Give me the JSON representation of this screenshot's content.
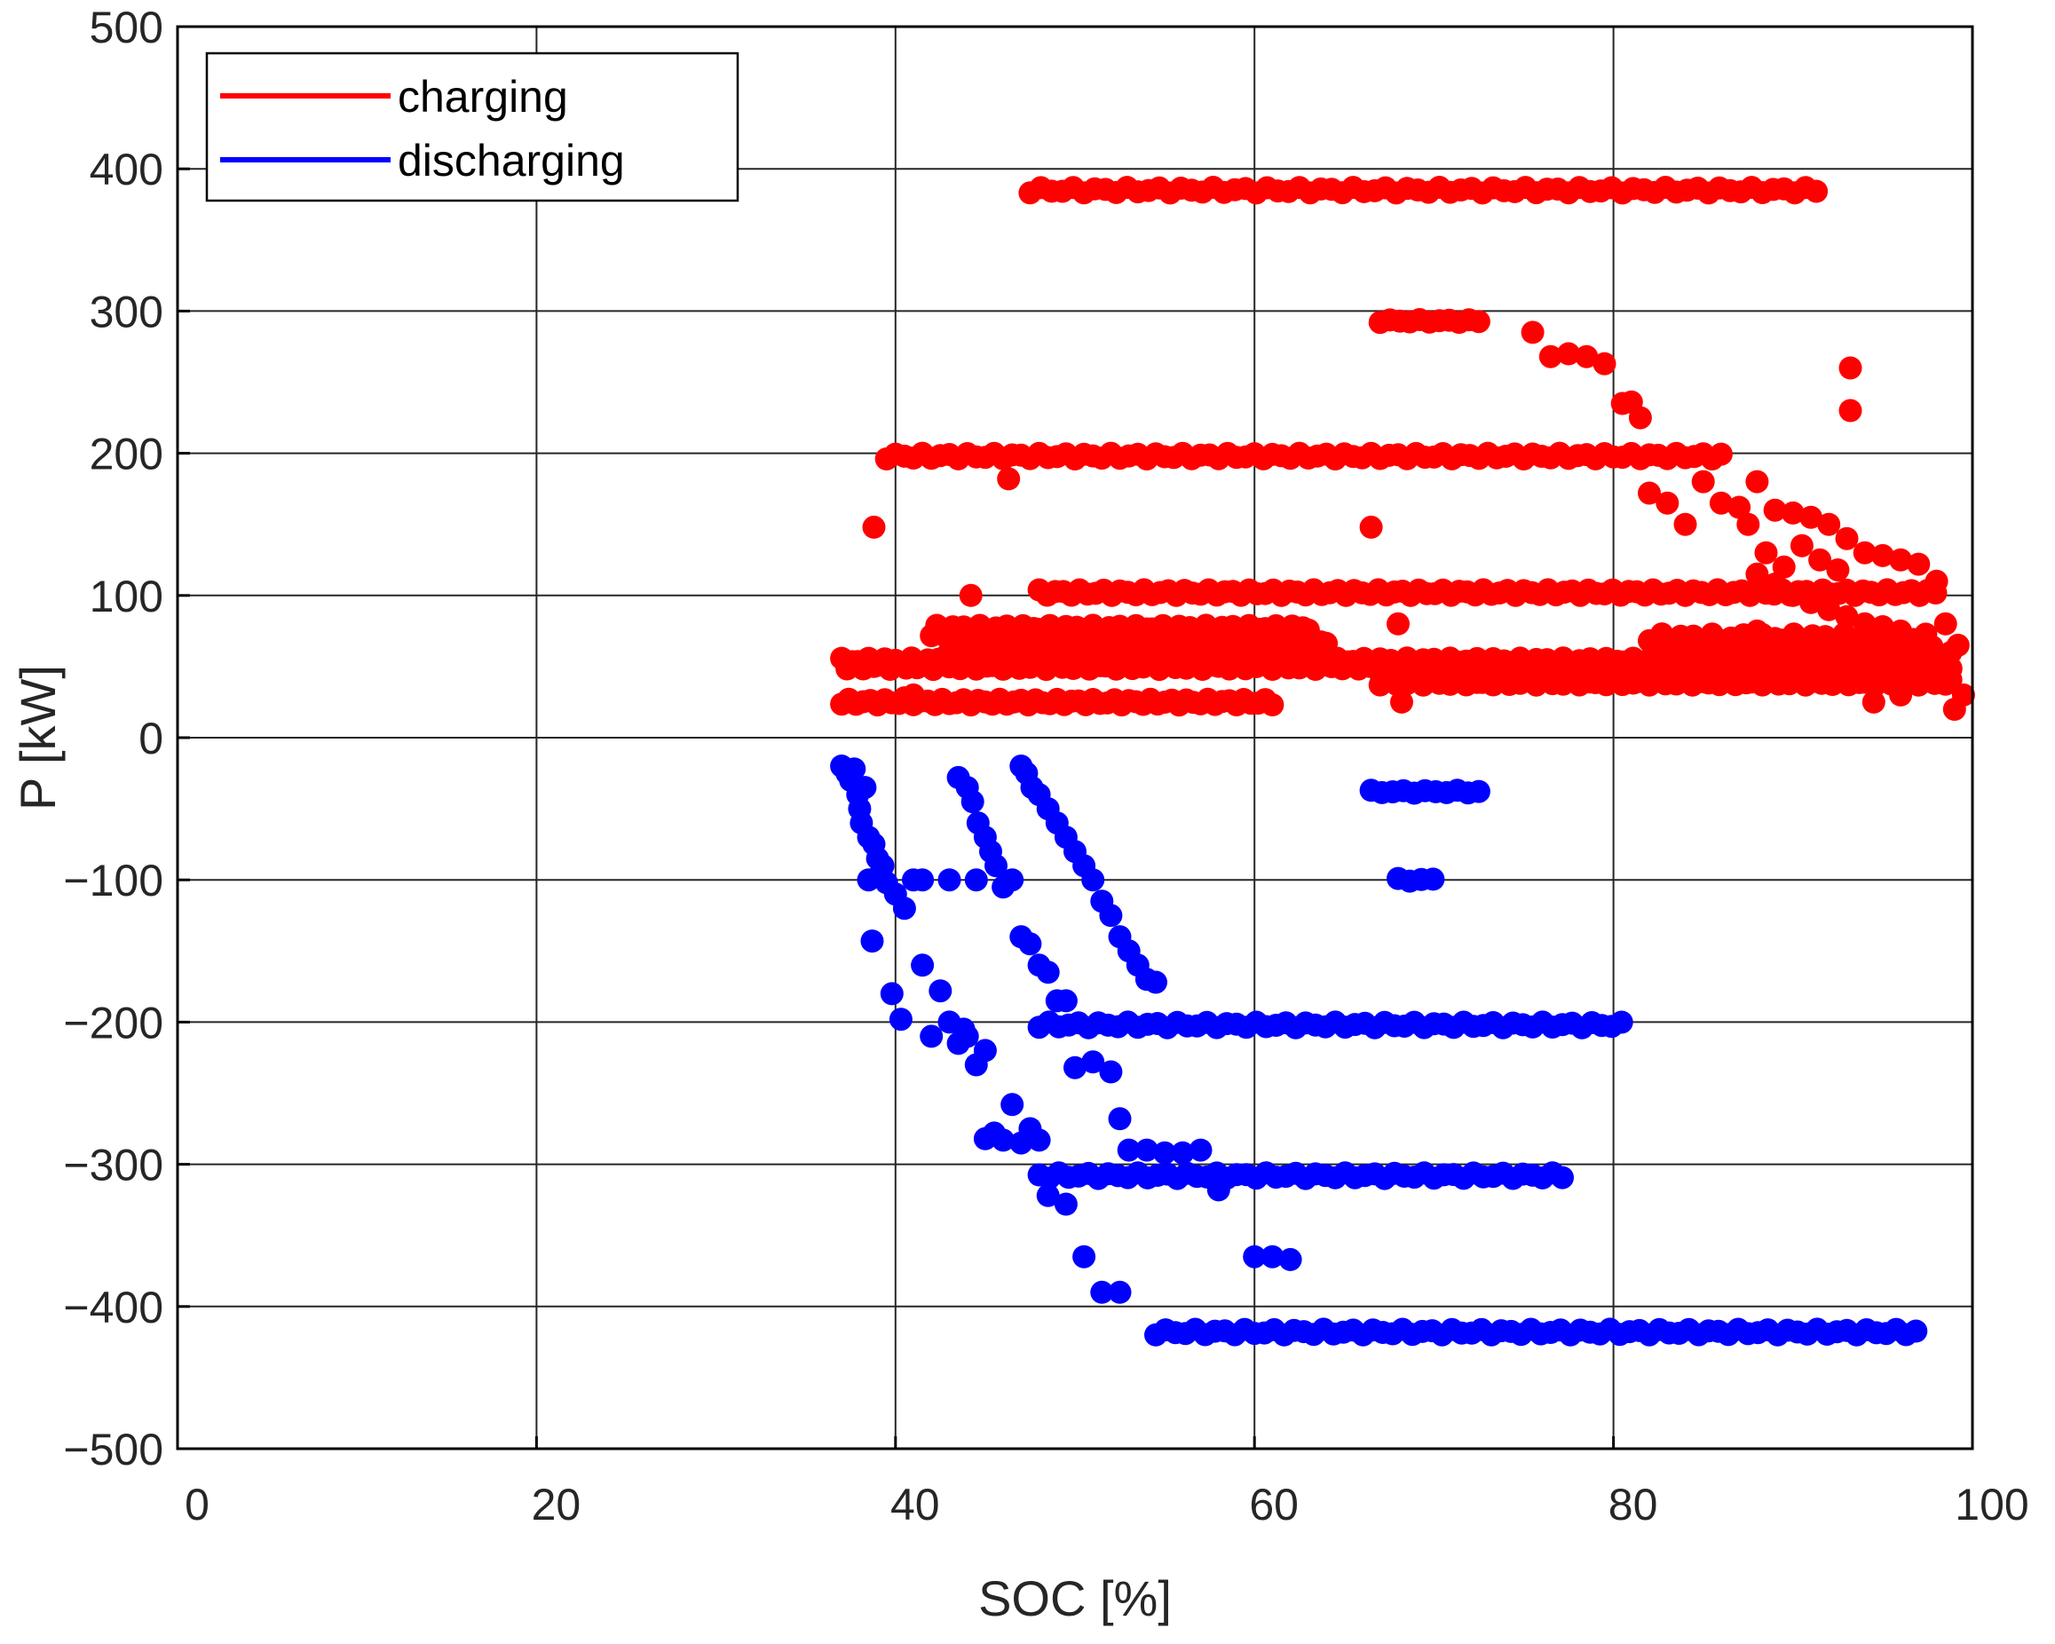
{
  "chart_data": {
    "type": "scatter",
    "title": "",
    "xlabel": "SOC [%]",
    "ylabel": "P [kW]",
    "xlim": [
      0,
      100
    ],
    "ylim": [
      -500,
      500
    ],
    "x_ticks": [
      0,
      20,
      40,
      60,
      80,
      100
    ],
    "y_ticks": [
      500,
      400,
      300,
      200,
      100,
      0,
      -100,
      -200,
      -300,
      -400,
      -500
    ],
    "x_tick_labels": [
      "0",
      "20",
      "40",
      "60",
      "80",
      "100"
    ],
    "y_tick_labels": [
      "500",
      "400",
      "300",
      "200",
      "100",
      "0",
      "−100",
      "−200",
      "−300",
      "−400",
      "−500"
    ],
    "grid": true,
    "legend_position": "top-left",
    "series": [
      {
        "name": "charging",
        "color": "#ff0000",
        "bands": [
          {
            "x_start": 47.5,
            "x_end": 91.5,
            "y": 385,
            "step": 0.6,
            "jitter": 2
          },
          {
            "x_start": 67,
            "x_end": 73,
            "y": 293,
            "step": 0.55,
            "jitter": 1
          },
          {
            "x_start": 39.5,
            "x_end": 86,
            "y": 198,
            "step": 0.5,
            "jitter": 2
          },
          {
            "x_start": 48,
            "x_end": 98,
            "y": 102,
            "step": 0.45,
            "jitter": 2
          },
          {
            "x_start": 42,
            "x_end": 63,
            "y": 75,
            "step": 0.3,
            "jitter": 4
          },
          {
            "x_start": 43,
            "x_end": 64,
            "y": 65,
            "step": 0.3,
            "jitter": 5
          },
          {
            "x_start": 44,
            "x_end": 64,
            "y": 57,
            "step": 0.3,
            "jitter": 5
          },
          {
            "x_start": 37,
            "x_end": 99,
            "y": 52,
            "step": 0.3,
            "jitter": 4
          },
          {
            "x_start": 67,
            "x_end": 99,
            "y": 45,
            "step": 0.3,
            "jitter": 4
          },
          {
            "x_start": 67,
            "x_end": 99,
            "y": 40,
            "step": 0.3,
            "jitter": 3
          },
          {
            "x_start": 82,
            "x_end": 98,
            "y": 67,
            "step": 0.35,
            "jitter": 6
          },
          {
            "x_start": 37,
            "x_end": 61,
            "y": 25,
            "step": 0.4,
            "jitter": 2
          }
        ],
        "points": [
          {
            "x": 38.8,
            "y": 148
          },
          {
            "x": 44.2,
            "y": 100
          },
          {
            "x": 46.3,
            "y": 182
          },
          {
            "x": 66.5,
            "y": 148
          },
          {
            "x": 68,
            "y": 80
          },
          {
            "x": 68.2,
            "y": 25
          },
          {
            "x": 75.5,
            "y": 285
          },
          {
            "x": 76.5,
            "y": 268
          },
          {
            "x": 77.5,
            "y": 270
          },
          {
            "x": 78.5,
            "y": 268
          },
          {
            "x": 79.5,
            "y": 263
          },
          {
            "x": 80.5,
            "y": 235
          },
          {
            "x": 81,
            "y": 236
          },
          {
            "x": 81.5,
            "y": 225
          },
          {
            "x": 93.2,
            "y": 260
          },
          {
            "x": 93.2,
            "y": 230
          },
          {
            "x": 82,
            "y": 172
          },
          {
            "x": 83,
            "y": 165
          },
          {
            "x": 84,
            "y": 150
          },
          {
            "x": 85,
            "y": 180
          },
          {
            "x": 86,
            "y": 165
          },
          {
            "x": 87,
            "y": 162
          },
          {
            "x": 88,
            "y": 180
          },
          {
            "x": 89,
            "y": 160
          },
          {
            "x": 90,
            "y": 158
          },
          {
            "x": 91,
            "y": 155
          },
          {
            "x": 92,
            "y": 150
          },
          {
            "x": 93,
            "y": 140
          },
          {
            "x": 94,
            "y": 130
          },
          {
            "x": 95,
            "y": 128
          },
          {
            "x": 96,
            "y": 125
          },
          {
            "x": 97,
            "y": 122
          },
          {
            "x": 98,
            "y": 110
          },
          {
            "x": 87.5,
            "y": 150
          },
          {
            "x": 88.5,
            "y": 130
          },
          {
            "x": 89.5,
            "y": 120
          },
          {
            "x": 90.5,
            "y": 135
          },
          {
            "x": 91.5,
            "y": 125
          },
          {
            "x": 92.5,
            "y": 118
          },
          {
            "x": 88,
            "y": 115
          },
          {
            "x": 89,
            "y": 108
          },
          {
            "x": 90,
            "y": 100
          },
          {
            "x": 91,
            "y": 95
          },
          {
            "x": 92,
            "y": 90
          },
          {
            "x": 93,
            "y": 85
          },
          {
            "x": 94,
            "y": 80
          },
          {
            "x": 95,
            "y": 78
          },
          {
            "x": 96,
            "y": 75
          },
          {
            "x": 98.5,
            "y": 80
          },
          {
            "x": 98.8,
            "y": 60
          },
          {
            "x": 99.2,
            "y": 65
          },
          {
            "x": 99.5,
            "y": 30
          },
          {
            "x": 99,
            "y": 20
          },
          {
            "x": 94.5,
            "y": 25
          },
          {
            "x": 96,
            "y": 30
          },
          {
            "x": 97.5,
            "y": 40
          },
          {
            "x": 41,
            "y": 30
          },
          {
            "x": 40.5,
            "y": 28
          },
          {
            "x": 80,
            "y": 50
          },
          {
            "x": 85,
            "y": 55
          },
          {
            "x": 86,
            "y": 60
          },
          {
            "x": 87,
            "y": 70
          },
          {
            "x": 88,
            "y": 75
          }
        ]
      },
      {
        "name": "discharging",
        "color": "#0000ff",
        "bands": [
          {
            "x_start": 48,
            "x_end": 80.5,
            "y": -202,
            "step": 0.55,
            "jitter": 2
          },
          {
            "x_start": 48,
            "x_end": 77.5,
            "y": -308,
            "step": 0.55,
            "jitter": 2
          },
          {
            "x_start": 54.5,
            "x_end": 97,
            "y": -418,
            "step": 0.55,
            "jitter": 2
          },
          {
            "x_start": 66.5,
            "x_end": 72.5,
            "y": -38,
            "step": 0.6,
            "jitter": 1
          },
          {
            "x_start": 68,
            "x_end": 70,
            "y": -100,
            "step": 0.65,
            "jitter": 1
          }
        ],
        "points": [
          {
            "x": 37,
            "y": -20
          },
          {
            "x": 37.3,
            "y": -25
          },
          {
            "x": 37.5,
            "y": -30
          },
          {
            "x": 37.7,
            "y": -22
          },
          {
            "x": 37.9,
            "y": -40
          },
          {
            "x": 38,
            "y": -50
          },
          {
            "x": 38.1,
            "y": -60
          },
          {
            "x": 38.3,
            "y": -35
          },
          {
            "x": 38.5,
            "y": -70
          },
          {
            "x": 38.8,
            "y": -75
          },
          {
            "x": 39,
            "y": -85
          },
          {
            "x": 39.3,
            "y": -90
          },
          {
            "x": 38.5,
            "y": -100
          },
          {
            "x": 39,
            "y": -98
          },
          {
            "x": 39.5,
            "y": -102
          },
          {
            "x": 40,
            "y": -110
          },
          {
            "x": 40.5,
            "y": -120
          },
          {
            "x": 41,
            "y": -100
          },
          {
            "x": 41.5,
            "y": -100
          },
          {
            "x": 43,
            "y": -100
          },
          {
            "x": 38.7,
            "y": -143
          },
          {
            "x": 39.8,
            "y": -180
          },
          {
            "x": 40.3,
            "y": -198
          },
          {
            "x": 41.5,
            "y": -160
          },
          {
            "x": 42,
            "y": -210
          },
          {
            "x": 42.5,
            "y": -178
          },
          {
            "x": 43,
            "y": -200
          },
          {
            "x": 43.5,
            "y": -215
          },
          {
            "x": 44,
            "y": -210
          },
          {
            "x": 44.5,
            "y": -230
          },
          {
            "x": 43.8,
            "y": -205
          },
          {
            "x": 45,
            "y": -220
          },
          {
            "x": 43.5,
            "y": -28
          },
          {
            "x": 44,
            "y": -35
          },
          {
            "x": 44.3,
            "y": -45
          },
          {
            "x": 44.6,
            "y": -60
          },
          {
            "x": 45,
            "y": -70
          },
          {
            "x": 45.3,
            "y": -80
          },
          {
            "x": 45.6,
            "y": -90
          },
          {
            "x": 46,
            "y": -105
          },
          {
            "x": 44.5,
            "y": -100
          },
          {
            "x": 46.5,
            "y": -100
          },
          {
            "x": 47,
            "y": -140
          },
          {
            "x": 47.5,
            "y": -145
          },
          {
            "x": 48,
            "y": -160
          },
          {
            "x": 48.5,
            "y": -165
          },
          {
            "x": 49,
            "y": -185
          },
          {
            "x": 49.5,
            "y": -185
          },
          {
            "x": 45,
            "y": -282
          },
          {
            "x": 45.5,
            "y": -278
          },
          {
            "x": 46,
            "y": -283
          },
          {
            "x": 46.5,
            "y": -258
          },
          {
            "x": 47,
            "y": -285
          },
          {
            "x": 47.5,
            "y": -275
          },
          {
            "x": 48,
            "y": -283
          },
          {
            "x": 47,
            "y": -20
          },
          {
            "x": 47.3,
            "y": -25
          },
          {
            "x": 47.6,
            "y": -35
          },
          {
            "x": 48,
            "y": -40
          },
          {
            "x": 48.5,
            "y": -50
          },
          {
            "x": 49,
            "y": -60
          },
          {
            "x": 49.5,
            "y": -70
          },
          {
            "x": 50,
            "y": -80
          },
          {
            "x": 50.5,
            "y": -90
          },
          {
            "x": 51,
            "y": -100
          },
          {
            "x": 51.5,
            "y": -115
          },
          {
            "x": 52,
            "y": -125
          },
          {
            "x": 52.5,
            "y": -140
          },
          {
            "x": 53,
            "y": -150
          },
          {
            "x": 53.5,
            "y": -160
          },
          {
            "x": 54,
            "y": -170
          },
          {
            "x": 54.5,
            "y": -172
          },
          {
            "x": 50,
            "y": -232
          },
          {
            "x": 51,
            "y": -228
          },
          {
            "x": 52,
            "y": -235
          },
          {
            "x": 52.5,
            "y": -268
          },
          {
            "x": 53,
            "y": -290
          },
          {
            "x": 54,
            "y": -290
          },
          {
            "x": 55,
            "y": -292
          },
          {
            "x": 56,
            "y": -292
          },
          {
            "x": 57,
            "y": -290
          },
          {
            "x": 48.5,
            "y": -322
          },
          {
            "x": 49.5,
            "y": -328
          },
          {
            "x": 50.5,
            "y": -365
          },
          {
            "x": 51.5,
            "y": -390
          },
          {
            "x": 52.5,
            "y": -390
          },
          {
            "x": 58,
            "y": -318
          },
          {
            "x": 60,
            "y": -365
          },
          {
            "x": 61,
            "y": -365
          },
          {
            "x": 62,
            "y": -367
          }
        ]
      }
    ]
  }
}
